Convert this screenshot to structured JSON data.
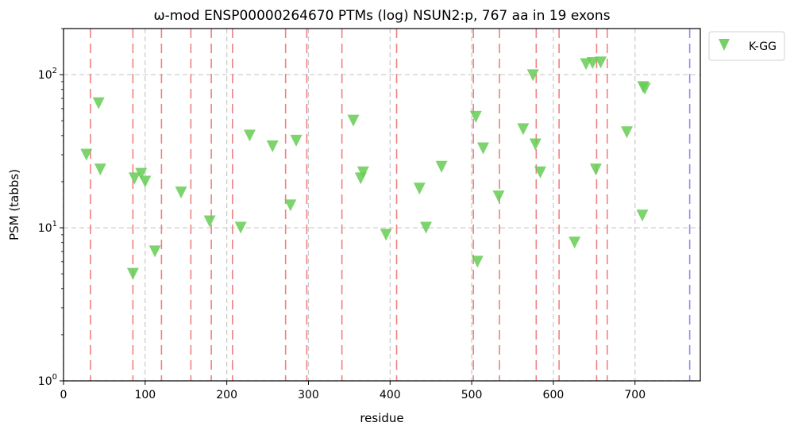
{
  "chart_data": {
    "type": "scatter",
    "title": "ω-mod ENSP00000264670 PTMs (log) NSUN2:p, 767 aa in 19 exons",
    "xlabel": "residue",
    "ylabel": "PSM (tabbs)",
    "xlim": [
      0,
      780
    ],
    "ylim": [
      1,
      200
    ],
    "yscale": "log",
    "x_ticks": [
      0,
      100,
      200,
      300,
      400,
      500,
      600,
      700
    ],
    "x_tick_labels": [
      "0",
      "100",
      "200",
      "300",
      "400",
      "500",
      "600",
      "700"
    ],
    "y_ticks": [
      1,
      10,
      100
    ],
    "y_tick_labels": [
      {
        "base": "10",
        "exp": "0"
      },
      {
        "base": "10",
        "exp": "1"
      },
      {
        "base": "10",
        "exp": "2"
      }
    ],
    "grid": true,
    "legend_position": "outside-top-right",
    "exon_boundaries": [
      33,
      85,
      120,
      156,
      181,
      207,
      272,
      298,
      341,
      408,
      502,
      534,
      579,
      607,
      653,
      666
    ],
    "protein_end": 767,
    "colors": {
      "exon_line": "#f08080",
      "grid_line": "#c8c8c8",
      "end_line": "#8f8fef",
      "marker": "#66cc55"
    },
    "series": [
      {
        "name": "K-GG",
        "marker": "triangle-down",
        "points": [
          {
            "x": 28,
            "y": 30
          },
          {
            "x": 43,
            "y": 65
          },
          {
            "x": 45,
            "y": 24
          },
          {
            "x": 85,
            "y": 5
          },
          {
            "x": 87,
            "y": 21
          },
          {
            "x": 95,
            "y": 22.5
          },
          {
            "x": 100,
            "y": 20
          },
          {
            "x": 112,
            "y": 7
          },
          {
            "x": 144,
            "y": 17
          },
          {
            "x": 179,
            "y": 11
          },
          {
            "x": 217,
            "y": 10
          },
          {
            "x": 228,
            "y": 40
          },
          {
            "x": 256,
            "y": 34
          },
          {
            "x": 278,
            "y": 14
          },
          {
            "x": 285,
            "y": 37
          },
          {
            "x": 355,
            "y": 50
          },
          {
            "x": 364,
            "y": 21
          },
          {
            "x": 367,
            "y": 23
          },
          {
            "x": 395,
            "y": 9
          },
          {
            "x": 436,
            "y": 18
          },
          {
            "x": 444,
            "y": 10
          },
          {
            "x": 463,
            "y": 25
          },
          {
            "x": 505,
            "y": 53
          },
          {
            "x": 507,
            "y": 6
          },
          {
            "x": 514,
            "y": 33
          },
          {
            "x": 533,
            "y": 16
          },
          {
            "x": 563,
            "y": 44
          },
          {
            "x": 575,
            "y": 99
          },
          {
            "x": 578,
            "y": 35
          },
          {
            "x": 584,
            "y": 23
          },
          {
            "x": 626,
            "y": 8
          },
          {
            "x": 640,
            "y": 117
          },
          {
            "x": 648,
            "y": 119
          },
          {
            "x": 652,
            "y": 24
          },
          {
            "x": 658,
            "y": 120
          },
          {
            "x": 690,
            "y": 42
          },
          {
            "x": 709,
            "y": 12
          },
          {
            "x": 710,
            "y": 83
          },
          {
            "x": 712,
            "y": 81
          }
        ]
      }
    ]
  }
}
